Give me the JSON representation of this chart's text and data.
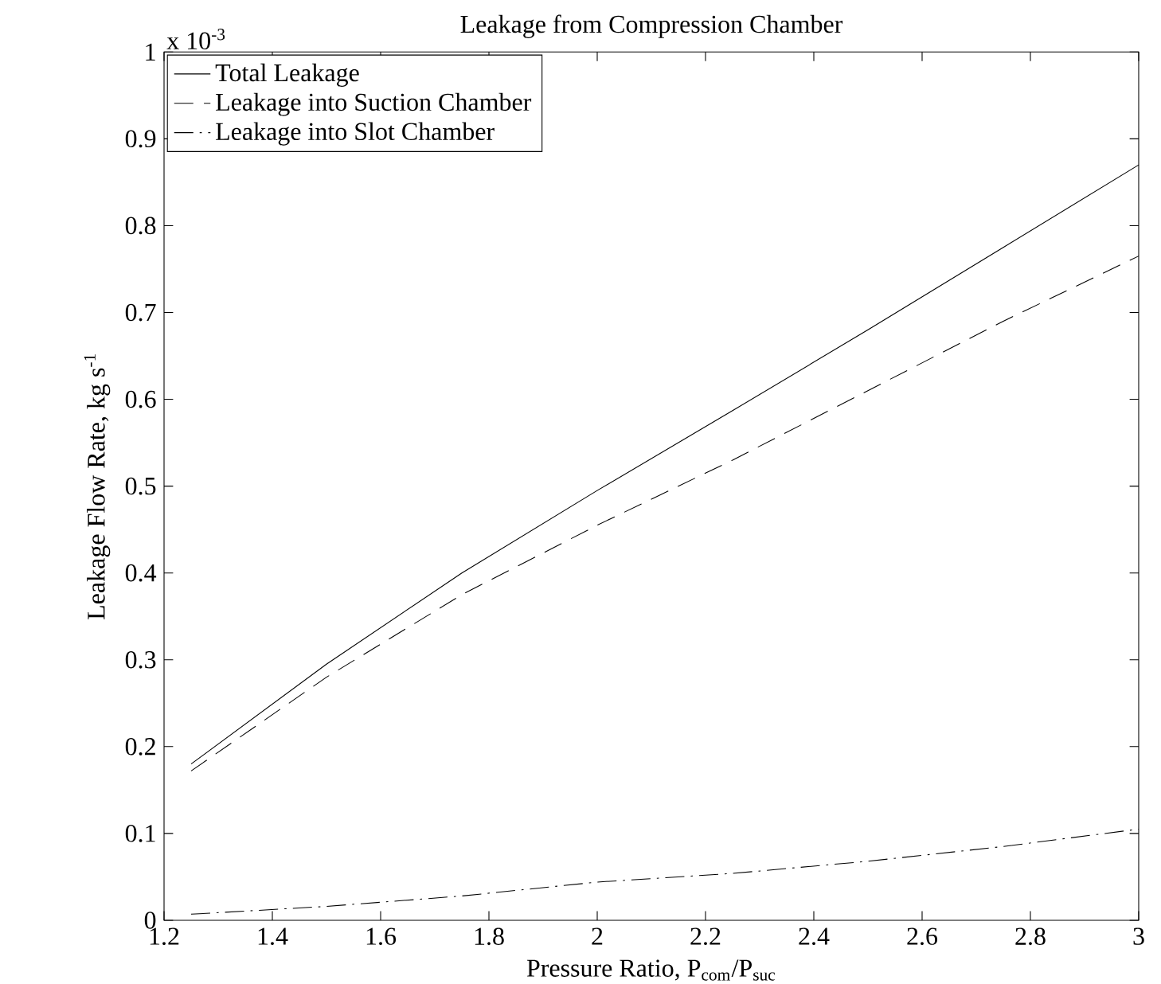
{
  "chart_data": {
    "type": "line",
    "title": "Leakage from Compression Chamber",
    "xlabel": "Pressure Ratio, P$_{com}$/P$_{suc}$",
    "ylabel": "Leakage Flow Rate, kg s$^{-1}$",
    "annotations": [
      "x 10$^{-3}$"
    ],
    "x": [
      1.25,
      1.5,
      1.75,
      2,
      2.25,
      2.5,
      2.75,
      3
    ],
    "series": [
      {
        "name": "Total Leakage",
        "color": "#000000",
        "line_style": "solid",
        "values": [
          0.18,
          0.295,
          0.4,
          0.495,
          0.587,
          0.68,
          0.775,
          0.87
        ]
      },
      {
        "name": "Leakage into Suction Chamber",
        "color": "#000000",
        "line_style": "dashed",
        "values": [
          0.172,
          0.28,
          0.375,
          0.455,
          0.53,
          0.61,
          0.69,
          0.765
        ]
      },
      {
        "name": "Leakage into Slot Chamber",
        "color": "#000000",
        "line_style": "dashdot",
        "values": [
          0.007,
          0.016,
          0.028,
          0.044,
          0.054,
          0.068,
          0.085,
          0.105
        ]
      }
    ],
    "xlim": [
      1.2,
      3
    ],
    "ylim": [
      0,
      1
    ],
    "xticks": [
      1.2,
      1.4,
      1.6,
      1.8,
      2,
      2.2,
      2.4,
      2.6,
      2.8,
      3
    ],
    "yticks": [
      0,
      0.1,
      0.2,
      0.3,
      0.4,
      0.5,
      0.6,
      0.7,
      0.8,
      0.9,
      1
    ],
    "grid": false,
    "legend": "top left",
    "marker": "none"
  }
}
